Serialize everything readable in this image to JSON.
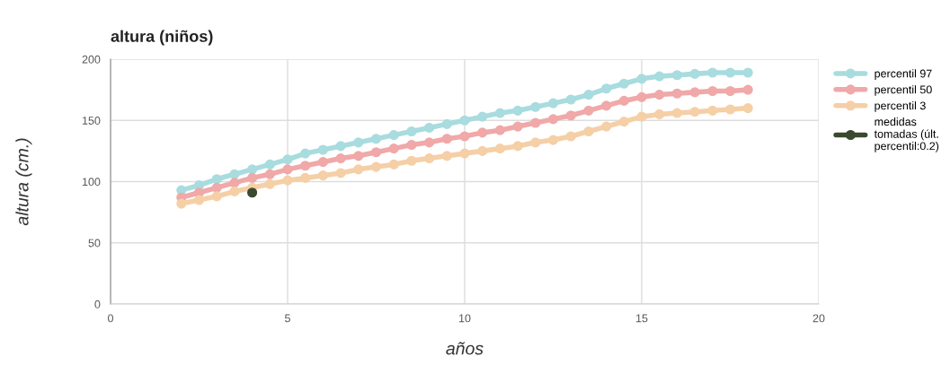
{
  "chart_data": {
    "type": "line",
    "title": "altura (niños)",
    "xlabel": "años",
    "ylabel": "altura (cm.)",
    "x": [
      2,
      2.5,
      3,
      3.5,
      4,
      4.5,
      5,
      5.5,
      6,
      6.5,
      7,
      7.5,
      8,
      8.5,
      9,
      9.5,
      10,
      10.5,
      11,
      11.5,
      12,
      12.5,
      13,
      13.5,
      14,
      14.5,
      15,
      15.5,
      16,
      16.5,
      17,
      17.5,
      18
    ],
    "series": [
      {
        "name": "percentil 97",
        "color": "#a8dcdf",
        "values": [
          93,
          97,
          102,
          106,
          110,
          114,
          118,
          123,
          126,
          129,
          132,
          135,
          138,
          141,
          144,
          147,
          150,
          153,
          156,
          158,
          161,
          164,
          167,
          171,
          176,
          180,
          184,
          186,
          187,
          188,
          189,
          189,
          189
        ]
      },
      {
        "name": "percentil 50",
        "color": "#f0a8a8",
        "values": [
          87,
          91,
          95,
          99,
          103,
          106,
          110,
          113,
          116,
          119,
          121,
          124,
          127,
          130,
          132,
          135,
          137,
          140,
          142,
          145,
          148,
          151,
          154,
          158,
          162,
          166,
          169,
          171,
          172,
          173,
          174,
          174,
          175
        ]
      },
      {
        "name": "percentil 3",
        "color": "#f5cfa6",
        "values": [
          82,
          85,
          88,
          92,
          95,
          98,
          101,
          103,
          105,
          107,
          110,
          112,
          114,
          117,
          119,
          121,
          123,
          125,
          127,
          129,
          132,
          134,
          137,
          141,
          145,
          149,
          153,
          155,
          156,
          157,
          158,
          159,
          160
        ]
      },
      {
        "name": "medidas tomadas (últ. percentil:0.2)",
        "color": "#3a4a2e",
        "x": [
          4
        ],
        "values": [
          91
        ]
      }
    ],
    "xlim": [
      0,
      20
    ],
    "xticks": [
      0,
      5,
      10,
      15,
      20
    ],
    "ylim": [
      0,
      200
    ],
    "yticks": [
      0,
      50,
      100,
      150,
      200
    ],
    "grid": true,
    "legend": "right",
    "marker": "circle",
    "line_style": "solid"
  }
}
